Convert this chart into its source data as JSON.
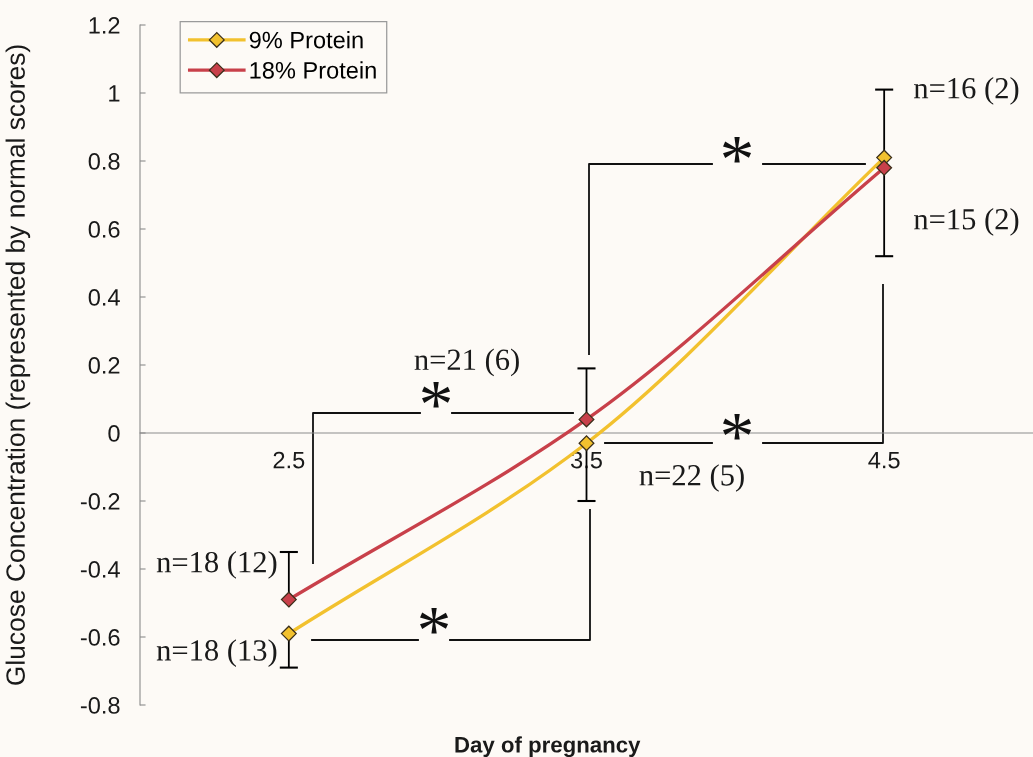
{
  "chart_data": {
    "type": "line",
    "xlabel": "Day of pregnancy",
    "ylabel": "Glucose Concentration (represented by normal scores)",
    "x": [
      2.5,
      3.5,
      4.5
    ],
    "xlim": [
      2,
      5
    ],
    "xticks": [
      2.5,
      3.5,
      4.5
    ],
    "ylim": [
      -0.8,
      1.2
    ],
    "yticks": [
      -0.8,
      -0.6,
      -0.4,
      -0.2,
      0,
      0.2,
      0.4,
      0.6,
      0.8,
      1,
      1.2
    ],
    "series": [
      {
        "name": "9% Protein",
        "color": "#f2c12e",
        "values": [
          -0.59,
          -0.03,
          0.81
        ],
        "errors": [
          [
            -0.69,
            -0.59
          ],
          [
            -0.2,
            -0.03
          ],
          [
            0.81,
            1.01
          ]
        ]
      },
      {
        "name": "18% Protein",
        "color": "#c8404a",
        "values": [
          -0.49,
          0.04,
          0.78
        ],
        "errors": [
          [
            -0.49,
            -0.35
          ],
          [
            0.04,
            0.19
          ],
          [
            0.52,
            0.78
          ]
        ]
      }
    ],
    "marker": "diamond",
    "line_style": "solid",
    "legend": "top left",
    "grid": false,
    "annotations": [
      {
        "text": "n=16 (2)",
        "x": 4.5,
        "y": 0.81
      },
      {
        "text": "n=15 (2)",
        "x": 4.5,
        "y": 0.78
      },
      {
        "text": "n=21 (6)",
        "x": 3.5,
        "y": 0.04
      },
      {
        "text": "n=18 (12)",
        "x": 2.5,
        "y": -0.49
      },
      {
        "text": "n=18 (13)",
        "x": 2.5,
        "y": -0.59
      },
      "n=22 (5)",
      "*",
      "*",
      "*",
      "*"
    ]
  }
}
